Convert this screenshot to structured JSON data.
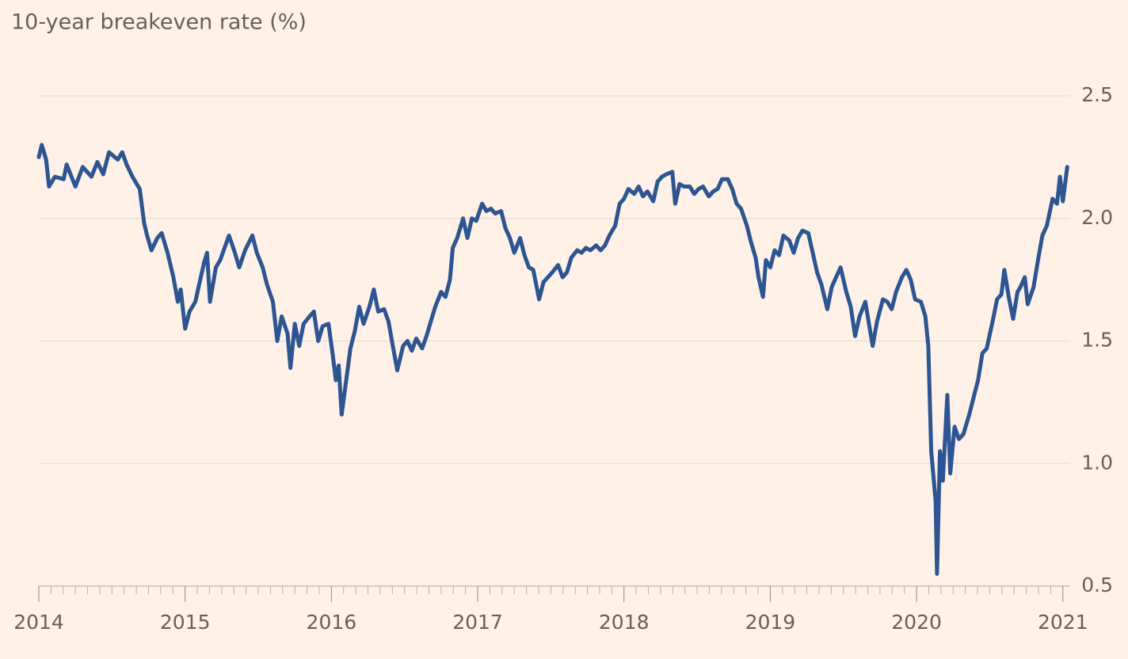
{
  "chart_data": {
    "type": "line",
    "title": "10-year breakeven rate (%)",
    "color": "#2a5596",
    "grid": true,
    "xlim": [
      2014,
      2021.05
    ],
    "xticks": [
      2014,
      2015,
      2016,
      2017,
      2018,
      2019,
      2020,
      2021
    ],
    "ylim": [
      0.5,
      2.5
    ],
    "yticks": [
      0.5,
      {
        "value": 1,
        "label": "1.0"
      },
      1.5,
      {
        "value": 2,
        "label": "2.0"
      },
      2.5
    ],
    "x": [
      2014.0,
      2014.02,
      2014.05,
      2014.07,
      2014.11,
      2014.17,
      2014.19,
      2014.25,
      2014.3,
      2014.36,
      2014.4,
      2014.44,
      2014.48,
      2014.54,
      2014.57,
      2014.6,
      2014.64,
      2014.69,
      2014.72,
      2014.74,
      2014.77,
      2014.81,
      2014.84,
      2014.88,
      2014.92,
      2014.95,
      2014.97,
      2015.0,
      2015.03,
      2015.07,
      2015.1,
      2015.13,
      2015.15,
      2015.17,
      2015.21,
      2015.24,
      2015.27,
      2015.3,
      2015.34,
      2015.37,
      2015.41,
      2015.46,
      2015.49,
      2015.53,
      2015.56,
      2015.6,
      2015.63,
      2015.66,
      2015.7,
      2015.72,
      2015.75,
      2015.78,
      2015.81,
      2015.85,
      2015.88,
      2015.91,
      2015.94,
      2015.98,
      2016.01,
      2016.03,
      2016.05,
      2016.07,
      2016.11,
      2016.13,
      2016.16,
      2016.19,
      2016.22,
      2016.26,
      2016.29,
      2016.32,
      2016.36,
      2016.39,
      2016.42,
      2016.45,
      2016.49,
      2016.52,
      2016.55,
      2016.58,
      2016.62,
      2016.65,
      2016.68,
      2016.71,
      2016.75,
      2016.78,
      2016.81,
      2016.83,
      2016.86,
      2016.9,
      2016.93,
      2016.96,
      2016.99,
      2017.03,
      2017.06,
      2017.09,
      2017.12,
      2017.16,
      2017.19,
      2017.22,
      2017.25,
      2017.29,
      2017.32,
      2017.35,
      2017.38,
      2017.42,
      2017.45,
      2017.48,
      2017.51,
      2017.55,
      2017.58,
      2017.61,
      2017.64,
      2017.68,
      2017.71,
      2017.74,
      2017.77,
      2017.81,
      2017.84,
      2017.87,
      2017.9,
      2017.94,
      2017.97,
      2018.0,
      2018.03,
      2018.07,
      2018.1,
      2018.13,
      2018.16,
      2018.2,
      2018.23,
      2018.26,
      2018.29,
      2018.33,
      2018.35,
      2018.38,
      2018.41,
      2018.45,
      2018.48,
      2018.51,
      2018.54,
      2018.58,
      2018.61,
      2018.64,
      2018.67,
      2018.71,
      2018.74,
      2018.77,
      2018.8,
      2018.84,
      2018.87,
      2018.9,
      2018.92,
      2018.95,
      2018.97,
      2019.0,
      2019.03,
      2019.06,
      2019.09,
      2019.13,
      2019.16,
      2019.19,
      2019.22,
      2019.26,
      2019.29,
      2019.32,
      2019.35,
      2019.39,
      2019.42,
      2019.45,
      2019.48,
      2019.52,
      2019.55,
      2019.58,
      2019.61,
      2019.65,
      2019.68,
      2019.7,
      2019.73,
      2019.77,
      2019.8,
      2019.83,
      2019.86,
      2019.9,
      2019.93,
      2019.96,
      2019.99,
      2020.03,
      2020.06,
      2020.08,
      2020.1,
      2020.13,
      2020.14,
      2020.16,
      2020.18,
      2020.21,
      2020.23,
      2020.26,
      2020.29,
      2020.32,
      2020.36,
      2020.39,
      2020.42,
      2020.45,
      2020.48,
      2020.52,
      2020.55,
      2020.58,
      2020.6,
      2020.63,
      2020.66,
      2020.69,
      2020.71,
      2020.74,
      2020.76,
      2020.8,
      2020.83,
      2020.86,
      2020.89,
      2020.93,
      2020.96,
      2020.98,
      2021.0,
      2021.03
    ],
    "values": [
      2.25,
      2.3,
      2.24,
      2.13,
      2.17,
      2.16,
      2.22,
      2.13,
      2.21,
      2.17,
      2.23,
      2.18,
      2.27,
      2.24,
      2.27,
      2.22,
      2.17,
      2.12,
      1.98,
      1.93,
      1.87,
      1.92,
      1.94,
      1.86,
      1.76,
      1.66,
      1.71,
      1.55,
      1.62,
      1.66,
      1.74,
      1.82,
      1.86,
      1.66,
      1.8,
      1.83,
      1.88,
      1.93,
      1.86,
      1.8,
      1.87,
      1.93,
      1.86,
      1.8,
      1.73,
      1.66,
      1.5,
      1.6,
      1.53,
      1.39,
      1.57,
      1.48,
      1.57,
      1.6,
      1.62,
      1.5,
      1.56,
      1.57,
      1.44,
      1.34,
      1.4,
      1.2,
      1.38,
      1.47,
      1.54,
      1.64,
      1.57,
      1.64,
      1.71,
      1.62,
      1.63,
      1.58,
      1.48,
      1.38,
      1.48,
      1.5,
      1.46,
      1.51,
      1.47,
      1.52,
      1.58,
      1.64,
      1.7,
      1.68,
      1.75,
      1.88,
      1.92,
      2.0,
      1.92,
      2.0,
      1.99,
      2.06,
      2.03,
      2.04,
      2.02,
      2.03,
      1.96,
      1.92,
      1.86,
      1.92,
      1.85,
      1.8,
      1.79,
      1.67,
      1.74,
      1.76,
      1.78,
      1.81,
      1.76,
      1.78,
      1.84,
      1.87,
      1.86,
      1.88,
      1.87,
      1.89,
      1.87,
      1.89,
      1.93,
      1.97,
      2.06,
      2.08,
      2.12,
      2.1,
      2.13,
      2.09,
      2.11,
      2.07,
      2.15,
      2.17,
      2.18,
      2.19,
      2.06,
      2.14,
      2.13,
      2.13,
      2.1,
      2.12,
      2.13,
      2.09,
      2.11,
      2.12,
      2.16,
      2.16,
      2.12,
      2.06,
      2.04,
      1.97,
      1.9,
      1.84,
      1.76,
      1.68,
      1.83,
      1.8,
      1.87,
      1.85,
      1.93,
      1.91,
      1.86,
      1.92,
      1.95,
      1.94,
      1.86,
      1.78,
      1.73,
      1.63,
      1.72,
      1.76,
      1.8,
      1.7,
      1.64,
      1.52,
      1.6,
      1.66,
      1.55,
      1.48,
      1.58,
      1.67,
      1.66,
      1.63,
      1.7,
      1.76,
      1.79,
      1.75,
      1.67,
      1.66,
      1.6,
      1.48,
      1.05,
      0.85,
      0.55,
      1.05,
      0.93,
      1.28,
      0.96,
      1.15,
      1.1,
      1.12,
      1.2,
      1.27,
      1.34,
      1.45,
      1.47,
      1.58,
      1.67,
      1.69,
      1.79,
      1.68,
      1.59,
      1.7,
      1.72,
      1.76,
      1.65,
      1.72,
      1.83,
      1.93,
      1.97,
      2.08,
      2.06,
      2.17,
      2.07,
      2.21
    ]
  }
}
